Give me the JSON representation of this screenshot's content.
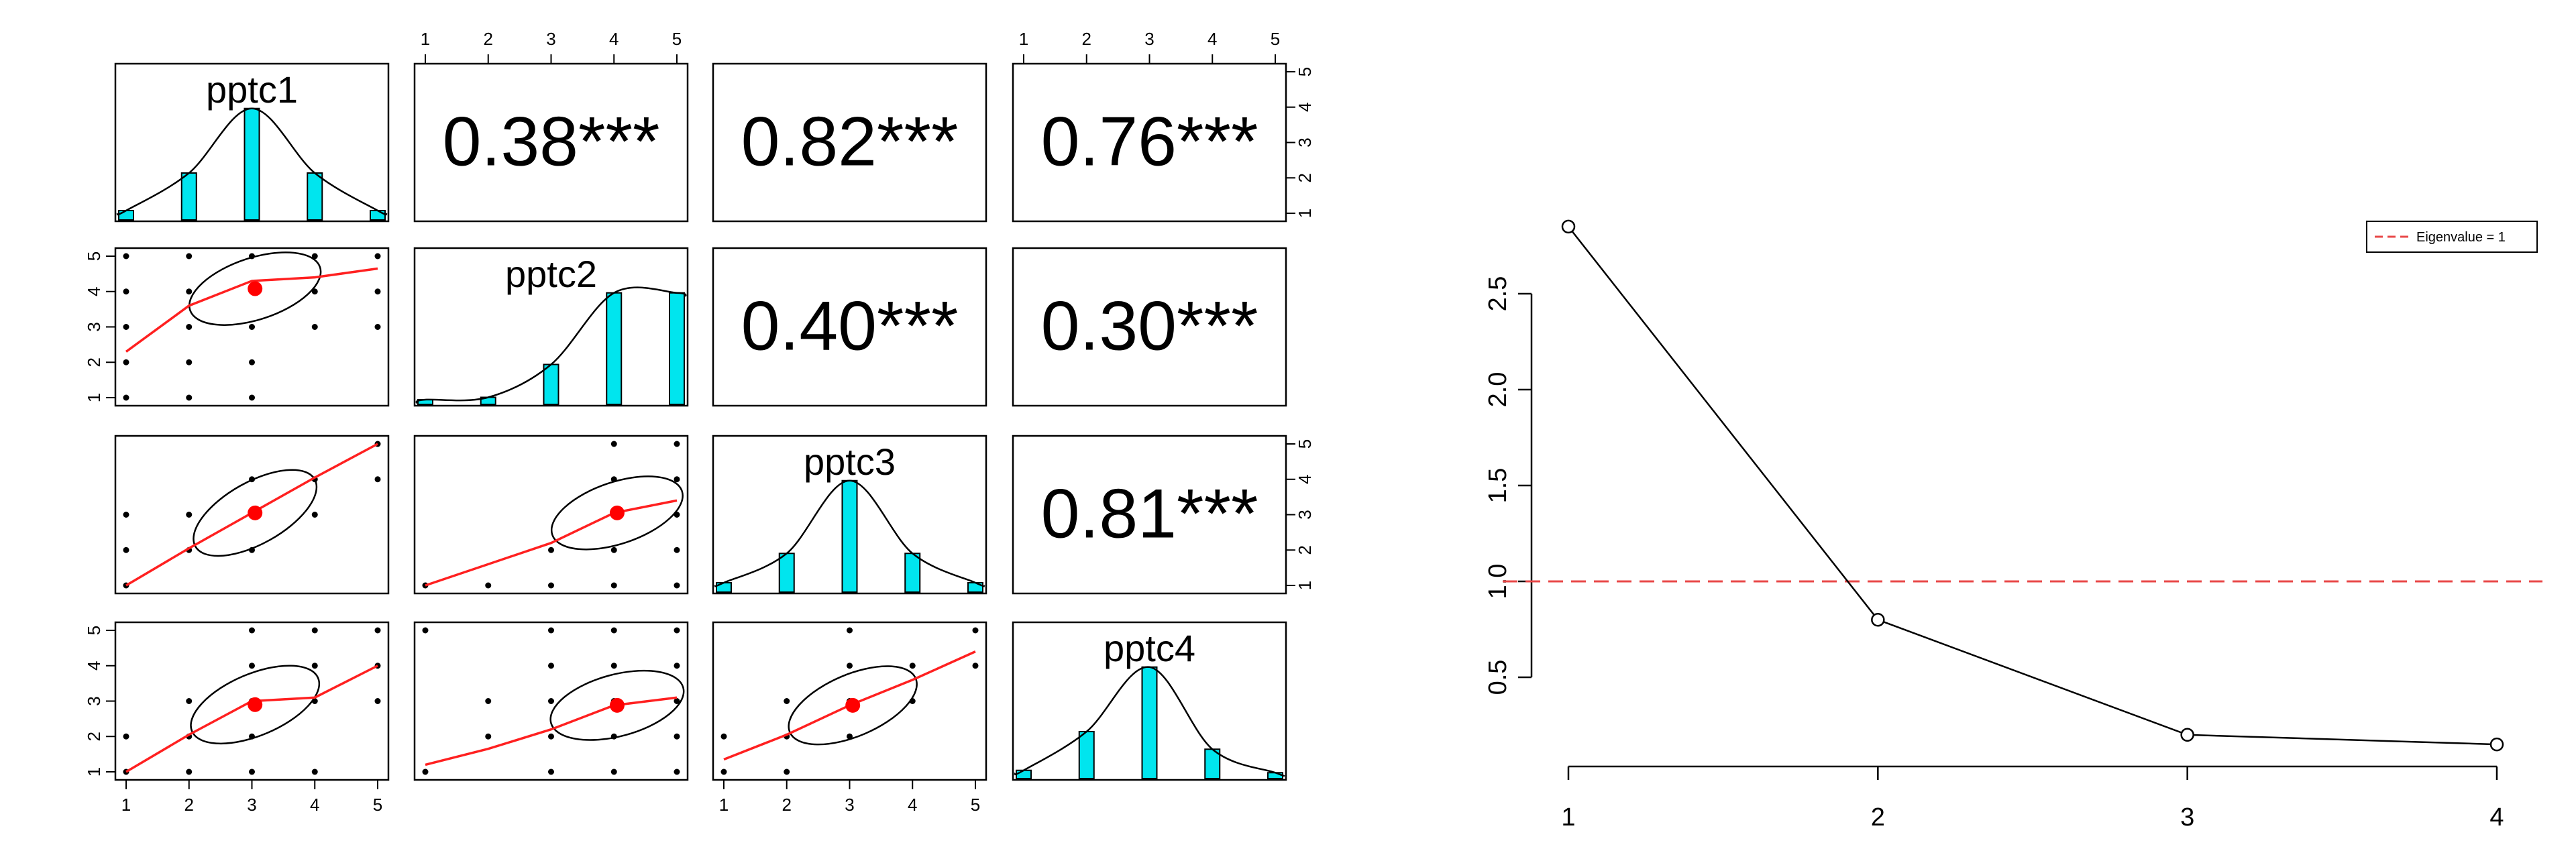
{
  "colors": {
    "background": "#ffffff",
    "axis": "#000000",
    "histogram_fill": "#00e5ee",
    "smooth_line": "#ff2020",
    "mean_point": "#ff0000",
    "threshold_line": "#e84848"
  },
  "chart_data": [
    {
      "type": "scatter",
      "kind": "pairs-panels",
      "variables": [
        "pptc1",
        "pptc2",
        "pptc3",
        "pptc4"
      ],
      "axis_range": [
        1,
        5
      ],
      "ticks": [
        "1",
        "2",
        "3",
        "4",
        "5"
      ],
      "correlation_labels": [
        {
          "row": 0,
          "col": 1,
          "text": "0.38***"
        },
        {
          "row": 0,
          "col": 2,
          "text": "0.82***"
        },
        {
          "row": 0,
          "col": 3,
          "text": "0.76***"
        },
        {
          "row": 1,
          "col": 2,
          "text": "0.40***"
        },
        {
          "row": 1,
          "col": 3,
          "text": "0.30***"
        },
        {
          "row": 2,
          "col": 3,
          "text": "0.81***"
        }
      ],
      "histograms": {
        "pptc1": [
          0.08,
          0.4,
          0.95,
          0.4,
          0.08
        ],
        "pptc2": [
          0.04,
          0.06,
          0.34,
          0.95,
          0.95
        ],
        "pptc3": [
          0.08,
          0.33,
          0.95,
          0.33,
          0.08
        ],
        "pptc4": [
          0.07,
          0.4,
          0.95,
          0.25,
          0.05
        ]
      },
      "scatter_panels": [
        {
          "row": 1,
          "col": 0,
          "points": [
            [
              1,
              1
            ],
            [
              1,
              2
            ],
            [
              1,
              3
            ],
            [
              1,
              4
            ],
            [
              1,
              5
            ],
            [
              2,
              1
            ],
            [
              2,
              2
            ],
            [
              2,
              3
            ],
            [
              2,
              4
            ],
            [
              2,
              5
            ],
            [
              3,
              1
            ],
            [
              3,
              2
            ],
            [
              3,
              3
            ],
            [
              3,
              4
            ],
            [
              3,
              5
            ],
            [
              4,
              3
            ],
            [
              4,
              4
            ],
            [
              4,
              5
            ],
            [
              5,
              3
            ],
            [
              5,
              4
            ],
            [
              5,
              5
            ]
          ],
          "mean": [
            3.05,
            4.08
          ],
          "smooth": [
            [
              1,
              2.3
            ],
            [
              2,
              3.6
            ],
            [
              3,
              4.3
            ],
            [
              4,
              4.4
            ],
            [
              5,
              4.65
            ]
          ]
        },
        {
          "row": 2,
          "col": 0,
          "points": [
            [
              1,
              1
            ],
            [
              1,
              2
            ],
            [
              1,
              3
            ],
            [
              2,
              2
            ],
            [
              2,
              3
            ],
            [
              3,
              2
            ],
            [
              3,
              3
            ],
            [
              3,
              4
            ],
            [
              4,
              3
            ],
            [
              4,
              4
            ],
            [
              5,
              4
            ],
            [
              5,
              5
            ]
          ],
          "mean": [
            3.05,
            3.05
          ],
          "smooth": [
            [
              1,
              1
            ],
            [
              2,
              2.05
            ],
            [
              3,
              3.05
            ],
            [
              4,
              4.05
            ],
            [
              5,
              5
            ]
          ]
        },
        {
          "row": 2,
          "col": 1,
          "points": [
            [
              1,
              1
            ],
            [
              2,
              1
            ],
            [
              3,
              1
            ],
            [
              3,
              2
            ],
            [
              4,
              1
            ],
            [
              4,
              2
            ],
            [
              4,
              3
            ],
            [
              4,
              4
            ],
            [
              4,
              5
            ],
            [
              5,
              1
            ],
            [
              5,
              2
            ],
            [
              5,
              3
            ],
            [
              5,
              4
            ],
            [
              5,
              5
            ]
          ],
          "mean": [
            4.05,
            3.05
          ],
          "smooth": [
            [
              1,
              1
            ],
            [
              2,
              1.6
            ],
            [
              3,
              2.2
            ],
            [
              4,
              3.05
            ],
            [
              5,
              3.4
            ]
          ]
        },
        {
          "row": 3,
          "col": 0,
          "points": [
            [
              1,
              1
            ],
            [
              1,
              2
            ],
            [
              2,
              1
            ],
            [
              2,
              2
            ],
            [
              2,
              3
            ],
            [
              3,
              1
            ],
            [
              3,
              2
            ],
            [
              3,
              3
            ],
            [
              3,
              4
            ],
            [
              3,
              5
            ],
            [
              4,
              1
            ],
            [
              4,
              3
            ],
            [
              4,
              4
            ],
            [
              4,
              5
            ],
            [
              5,
              3
            ],
            [
              5,
              4
            ],
            [
              5,
              5
            ]
          ],
          "mean": [
            3.05,
            2.9
          ],
          "smooth": [
            [
              1,
              1
            ],
            [
              2,
              2.05
            ],
            [
              3,
              3
            ],
            [
              4,
              3.1
            ],
            [
              5,
              4
            ]
          ]
        },
        {
          "row": 3,
          "col": 1,
          "points": [
            [
              1,
              1
            ],
            [
              1,
              5
            ],
            [
              2,
              2
            ],
            [
              2,
              3
            ],
            [
              3,
              1
            ],
            [
              3,
              2
            ],
            [
              3,
              3
            ],
            [
              3,
              4
            ],
            [
              3,
              5
            ],
            [
              4,
              1
            ],
            [
              4,
              2
            ],
            [
              4,
              3
            ],
            [
              4,
              4
            ],
            [
              4,
              5
            ],
            [
              5,
              1
            ],
            [
              5,
              2
            ],
            [
              5,
              3
            ],
            [
              5,
              4
            ],
            [
              5,
              5
            ]
          ],
          "mean": [
            4.05,
            2.88
          ],
          "smooth": [
            [
              1,
              1.2
            ],
            [
              2,
              1.65
            ],
            [
              3,
              2.2
            ],
            [
              4,
              2.88
            ],
            [
              5,
              3.1
            ]
          ]
        },
        {
          "row": 3,
          "col": 2,
          "points": [
            [
              1,
              1
            ],
            [
              1,
              2
            ],
            [
              2,
              1
            ],
            [
              2,
              2
            ],
            [
              2,
              3
            ],
            [
              3,
              2
            ],
            [
              3,
              3
            ],
            [
              3,
              4
            ],
            [
              3,
              5
            ],
            [
              4,
              3
            ],
            [
              4,
              4
            ],
            [
              5,
              4
            ],
            [
              5,
              5
            ]
          ],
          "mean": [
            3.05,
            2.88
          ],
          "smooth": [
            [
              1,
              1.35
            ],
            [
              2,
              2.05
            ],
            [
              3,
              2.88
            ],
            [
              4,
              3.6
            ],
            [
              5,
              4.4
            ]
          ]
        }
      ]
    },
    {
      "type": "line",
      "kind": "scree-plot",
      "x": [
        1,
        2,
        3,
        4
      ],
      "y": [
        2.85,
        0.8,
        0.2,
        0.15
      ],
      "xlim": [
        1,
        4
      ],
      "ylim": [
        0,
        2.9
      ],
      "x_ticks": [
        "1",
        "2",
        "3",
        "4"
      ],
      "y_ticks": [
        "0.5",
        "1.0",
        "1.5",
        "2.0",
        "2.5"
      ],
      "threshold": {
        "value": 1.0,
        "label": "Eigenvalue = 1"
      },
      "legend": {
        "position": "top-right",
        "entries": [
          "Eigenvalue = 1"
        ]
      },
      "grid": false
    }
  ]
}
